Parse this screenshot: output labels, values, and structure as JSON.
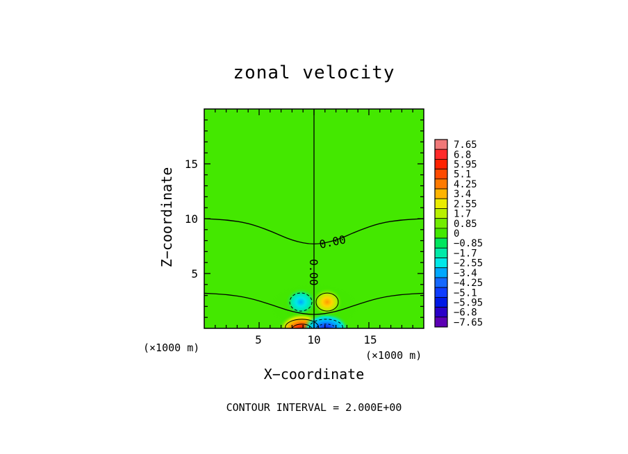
{
  "chart_data": {
    "type": "heatmap",
    "title": "zonal velocity",
    "xlabel": "X−coordinate",
    "ylabel": "Z−coordinate",
    "xlim": [
      0,
      20
    ],
    "ylim": [
      0,
      20
    ],
    "x_ticks": [
      "5",
      "10",
      "15"
    ],
    "y_ticks": [
      "5",
      "10",
      "15"
    ],
    "x_unit_left": "(×1000 m)",
    "x_unit_right": "(×1000 m)",
    "colorbar_labels": [
      "7.65",
      "6.8",
      "5.95",
      "5.1",
      "4.25",
      "3.4",
      "2.55",
      "1.7",
      "0.85",
      "0",
      "−0.85",
      "−1.7",
      "−2.55",
      "−3.4",
      "−4.25",
      "−5.1",
      "−5.95",
      "−6.8",
      "−7.65"
    ],
    "colorbar_colors": [
      "#f07878",
      "#ff2a2a",
      "#ff2200",
      "#ff4a00",
      "#ff7a00",
      "#ffb400",
      "#eaec00",
      "#b8f000",
      "#72ec00",
      "#44e800",
      "#00e65e",
      "#00eaa8",
      "#00e8e8",
      "#00a8ff",
      "#1468ff",
      "#0e3cff",
      "#0018e6",
      "#2a00c8",
      "#5c00b4"
    ],
    "contour_labels": [
      "0.00",
      "0.00"
    ],
    "extrema_features": [
      {
        "sign": "negative",
        "x_km": 8.8,
        "z_km": 2.4,
        "peak": -3.0
      },
      {
        "sign": "positive",
        "x_km": 11.2,
        "z_km": 2.4,
        "peak": 3.0
      },
      {
        "sign": "positive",
        "x_km": 8.9,
        "z_km": 0.2,
        "peak": 7.3
      },
      {
        "sign": "negative",
        "x_km": 11.1,
        "z_km": 0.2,
        "peak": -7.3
      }
    ],
    "zero_contours": [
      {
        "x": [
          0,
          2,
          4,
          6,
          8,
          10,
          12,
          14,
          16,
          18,
          20
        ],
        "z": [
          10.0,
          9.9,
          9.6,
          8.9,
          8.0,
          7.6,
          8.0,
          8.9,
          9.6,
          9.9,
          10.0
        ]
      },
      {
        "x": [
          0,
          2,
          4,
          6,
          8,
          10,
          12,
          14,
          16,
          18,
          20
        ],
        "z": [
          3.2,
          3.1,
          2.8,
          2.2,
          1.5,
          1.2,
          1.5,
          2.2,
          2.8,
          3.1,
          3.2
        ]
      },
      {
        "x": [
          10,
          10
        ],
        "z": [
          0,
          20
        ]
      }
    ]
  },
  "footer": {
    "contour_interval": "CONTOUR INTERVAL =  2.000E+00"
  }
}
